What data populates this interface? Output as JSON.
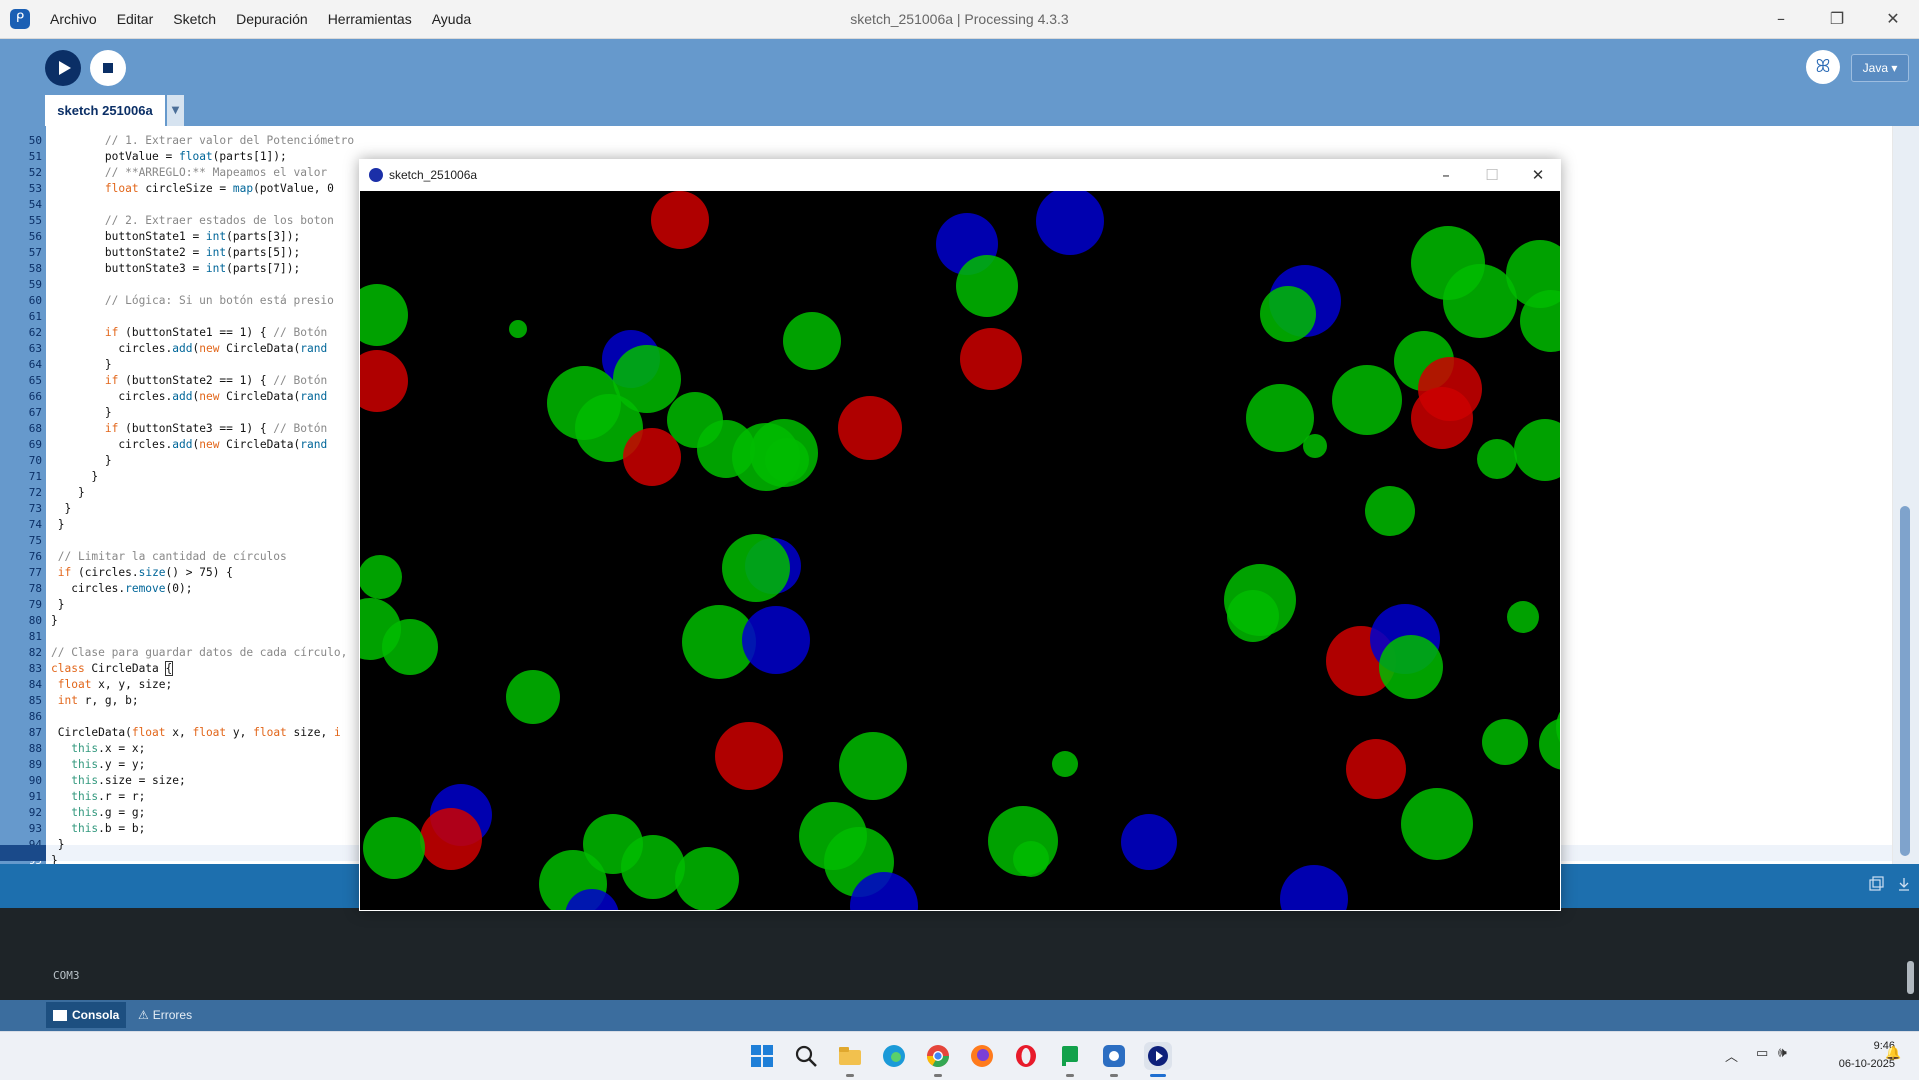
{
  "titlebar": {
    "menu": [
      "Archivo",
      "Editar",
      "Sketch",
      "Depuración",
      "Herramientas",
      "Ayuda"
    ],
    "title": "sketch_251006a | Processing 4.3.3"
  },
  "toolbar": {
    "mode": "Java ▾",
    "tab_label": "sketch 251006a"
  },
  "editor": {
    "lines": [
      {
        "n": "50",
        "html": "        <span class=\"c\">// 1. Extraer valor del Potenciómetro</span>"
      },
      {
        "n": "51",
        "html": "        potValue = <span class=\"f\">float</span>(parts[1]);"
      },
      {
        "n": "52",
        "html": "        <span class=\"c\">// **ARREGLO:** Mapeamos el valor</span>"
      },
      {
        "n": "53",
        "html": "        <span class=\"k\">float</span> circleSize = <span class=\"f\">map</span>(potValue, 0"
      },
      {
        "n": "54",
        "html": ""
      },
      {
        "n": "55",
        "html": "        <span class=\"c\">// 2. Extraer estados de los boton</span>"
      },
      {
        "n": "56",
        "html": "        buttonState1 = <span class=\"f\">int</span>(parts[3]);"
      },
      {
        "n": "57",
        "html": "        buttonState2 = <span class=\"f\">int</span>(parts[5]);"
      },
      {
        "n": "58",
        "html": "        buttonState3 = <span class=\"f\">int</span>(parts[7]);"
      },
      {
        "n": "59",
        "html": ""
      },
      {
        "n": "60",
        "html": "        <span class=\"c\">// Lógica: Si un botón está presio</span>"
      },
      {
        "n": "61",
        "html": ""
      },
      {
        "n": "62",
        "html": "        <span class=\"k\">if</span> (buttonState1 == 1) { <span class=\"c\">// Botón</span>"
      },
      {
        "n": "63",
        "html": "          circles.<span class=\"f\">add</span>(<span class=\"k\">new</span> CircleData(<span class=\"f\">rand</span>"
      },
      {
        "n": "64",
        "html": "        }"
      },
      {
        "n": "65",
        "html": "        <span class=\"k\">if</span> (buttonState2 == 1) { <span class=\"c\">// Botón</span>"
      },
      {
        "n": "66",
        "html": "          circles.<span class=\"f\">add</span>(<span class=\"k\">new</span> CircleData(<span class=\"f\">rand</span>"
      },
      {
        "n": "67",
        "html": "        }"
      },
      {
        "n": "68",
        "html": "        <span class=\"k\">if</span> (buttonState3 == 1) { <span class=\"c\">// Botón</span>"
      },
      {
        "n": "69",
        "html": "          circles.<span class=\"f\">add</span>(<span class=\"k\">new</span> CircleData(<span class=\"f\">rand</span>"
      },
      {
        "n": "70",
        "html": "        }"
      },
      {
        "n": "71",
        "html": "      }"
      },
      {
        "n": "72",
        "html": "    }"
      },
      {
        "n": "73",
        "html": "  }"
      },
      {
        "n": "74",
        "html": " }"
      },
      {
        "n": "75",
        "html": ""
      },
      {
        "n": "76",
        "html": " <span class=\"c\">// Limitar la cantidad de círculos</span>"
      },
      {
        "n": "77",
        "html": " <span class=\"k\">if</span> (circles.<span class=\"f\">size</span>() > 75) {"
      },
      {
        "n": "78",
        "html": "   circles.<span class=\"f\">remove</span>(0);"
      },
      {
        "n": "79",
        "html": " }"
      },
      {
        "n": "80",
        "html": "}"
      },
      {
        "n": "81",
        "html": ""
      },
      {
        "n": "82",
        "html": "<span class=\"c\">// Clase para guardar datos de cada círculo,</span>"
      },
      {
        "n": "83",
        "html": "<span class=\"k\">class</span> CircleData <span class=\"cur\">{</span>"
      },
      {
        "n": "84",
        "html": " <span class=\"k\">float</span> x, y, size;"
      },
      {
        "n": "85",
        "html": " <span class=\"k\">int</span> r, g, b;"
      },
      {
        "n": "86",
        "html": ""
      },
      {
        "n": "87",
        "html": " CircleData(<span class=\"k\">float</span> x, <span class=\"k\">float</span> y, <span class=\"k\">float</span> size, <span class=\"k\">i</span>"
      },
      {
        "n": "88",
        "html": "   <span class=\"t\">this</span>.x = x;"
      },
      {
        "n": "89",
        "html": "   <span class=\"t\">this</span>.y = y;"
      },
      {
        "n": "90",
        "html": "   <span class=\"t\">this</span>.size = size;"
      },
      {
        "n": "91",
        "html": "   <span class=\"t\">this</span>.r = r;"
      },
      {
        "n": "92",
        "html": "   <span class=\"t\">this</span>.g = g;"
      },
      {
        "n": "93",
        "html": "   <span class=\"t\">this</span>.b = b;"
      },
      {
        "n": "94",
        "html": " }"
      },
      {
        "n": "95",
        "html": "}"
      }
    ]
  },
  "console": {
    "output": "COM3",
    "tab_console": "Consola",
    "tab_errors": "Errores"
  },
  "sketch_window": {
    "title": "sketch_251006a"
  },
  "taskbar": {
    "time": "9:46",
    "date": "06-10-2025"
  },
  "colors": {
    "accent": "#6699cc",
    "green": "#00bb00",
    "red": "#cc0000",
    "blue": "#0000cc"
  }
}
